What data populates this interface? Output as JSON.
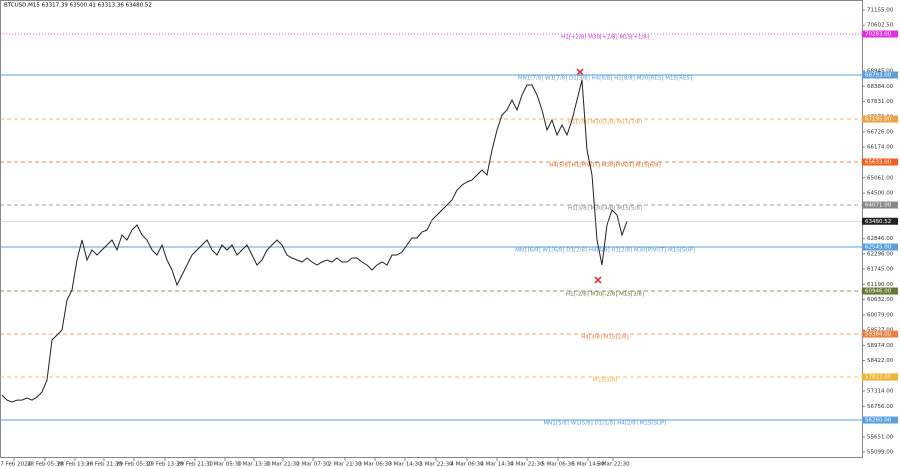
{
  "chart_data": {
    "type": "line",
    "title": "BTCUSD,M15  63317.39 63500.41 63313.36 63480.52",
    "color": "#222222",
    "xlim": [
      -0.4,
      172
    ],
    "ylim": [
      54881,
      71518
    ],
    "values": [
      57168,
      56986,
      56914,
      56986,
      56986,
      57059,
      56986,
      57095,
      57277,
      57713,
      59166,
      59348,
      59529,
      60619,
      60983,
      62072,
      62799,
      62072,
      62436,
      62254,
      62436,
      62617,
      62799,
      62436,
      62981,
      62799,
      63162,
      63344,
      62981,
      62799,
      62436,
      62254,
      62617,
      62072,
      61709,
      61164,
      61528,
      61891,
      62254,
      62436,
      62617,
      62799,
      62436,
      62254,
      62617,
      62436,
      62617,
      62254,
      62436,
      62617,
      62254,
      61891,
      62072,
      62436,
      62617,
      62799,
      62617,
      62254,
      62145,
      62072,
      62000,
      62145,
      62000,
      61891,
      62000,
      62072,
      62000,
      62145,
      62000,
      62000,
      62145,
      62145,
      62000,
      61891,
      61709,
      61891,
      62000,
      61891,
      62254,
      62254,
      62363,
      62617,
      62872,
      62872,
      63090,
      63162,
      63526,
      63707,
      63889,
      64071,
      64252,
      64616,
      64797,
      64906,
      64979,
      65161,
      65342,
      65161,
      66069,
      66795,
      67340,
      67522,
      67885,
      67522,
      68067,
      68430,
      68430,
      68067,
      67522,
      66795,
      67159,
      66614,
      66977,
      66614,
      67159,
      67885,
      68612,
      66069,
      65161,
      62799,
      61891,
      63344,
      63889,
      63707,
      62981,
      63480.52
    ],
    "last_price": {
      "value": 63480.52,
      "label": "63480.52"
    },
    "yticks": [
      {
        "value": 71155,
        "label": "71155.00"
      },
      {
        "value": 70602.5,
        "label": "70602.50"
      },
      {
        "value": 68945,
        "label": "68945.00"
      },
      {
        "value": 68384,
        "label": "68384.00"
      },
      {
        "value": 67831,
        "label": "67831.00"
      },
      {
        "value": 67276,
        "label": "67276.00"
      },
      {
        "value": 66726,
        "label": "66726.00"
      },
      {
        "value": 66174,
        "label": "66174.00"
      },
      {
        "value": 65061,
        "label": "65061.00"
      },
      {
        "value": 64500,
        "label": "64500.00"
      },
      {
        "value": 62846,
        "label": "62846.00"
      },
      {
        "value": 62296,
        "label": "62296.00"
      },
      {
        "value": 61745,
        "label": "61745.00"
      },
      {
        "value": 61190,
        "label": "61190.00"
      },
      {
        "value": 60632,
        "label": "60632.00"
      },
      {
        "value": 60079,
        "label": "60079.00"
      },
      {
        "value": 59527,
        "label": "59527.00"
      },
      {
        "value": 58974,
        "label": "58974.00"
      },
      {
        "value": 58422,
        "label": "58422.00"
      },
      {
        "value": 57866,
        "label": "57866.00"
      },
      {
        "value": 57314,
        "label": "57314.00"
      },
      {
        "value": 56756,
        "label": "56756.00"
      },
      {
        "value": 55651,
        "label": "55651.00"
      },
      {
        "value": 55099,
        "label": "55099.00"
      }
    ],
    "xticks": [
      {
        "value": 2.4,
        "label": "27 Feb 2024"
      },
      {
        "value": 8.6,
        "label": "28 Feb 05:30"
      },
      {
        "value": 14.6,
        "label": "28 Feb 13:30"
      },
      {
        "value": 20.4,
        "label": "28 Feb 21:30"
      },
      {
        "value": 26.4,
        "label": "29 Feb 05:30"
      },
      {
        "value": 32.6,
        "label": "29 Feb 13:30"
      },
      {
        "value": 38.6,
        "label": "29 Feb 21:30"
      },
      {
        "value": 44.6,
        "label": "1 Mar 05:30"
      },
      {
        "value": 50.4,
        "label": "1 Mar 13:30"
      },
      {
        "value": 56.2,
        "label": "1 Mar 21:30"
      },
      {
        "value": 62.2,
        "label": "2 Mar 07:30"
      },
      {
        "value": 68.6,
        "label": "2 Mar 21:30"
      },
      {
        "value": 74.6,
        "label": "3 Mar 06:30"
      },
      {
        "value": 80.6,
        "label": "3 Mar 14:30"
      },
      {
        "value": 86.8,
        "label": "3 Mar 22:30"
      },
      {
        "value": 93,
        "label": "4 Mar 06:30"
      },
      {
        "value": 99,
        "label": "4 Mar 14:30"
      },
      {
        "value": 105,
        "label": "4 Mar 22:30"
      },
      {
        "value": 111.2,
        "label": "5 Mar 06:30"
      },
      {
        "value": 117.2,
        "label": "5 Mar 14:30"
      },
      {
        "value": 122.2,
        "label": "5 Mar 22:30"
      }
    ],
    "levels": [
      {
        "value": 70283,
        "label": "70283.00",
        "text": "H1[+2/8] M30[+2/8] M15[+1/8]",
        "color": "#e030e0",
        "dash": "1,2"
      },
      {
        "value": 68793,
        "label": "68793.00",
        "text": "MN1[7/8] W1[7/8] D1[3/8] H4[8/8] H1[8/8] M30[RES] M15[RES]",
        "color": "#5aa0e0",
        "dash": "none"
      },
      {
        "value": 67195,
        "label": "67195.00",
        "text": "H1[7/8] M30[5/8] M15[7/8]",
        "color": "#f0a040",
        "dash": "4,3"
      },
      {
        "value": 65633,
        "label": "65633.00",
        "text": "H4[5/8] H1[PIVOT] M30[PIVOT] M15[6/8]",
        "color": "#f06020",
        "dash": "4,3"
      },
      {
        "value": 64071,
        "label": "64071.00",
        "text": "H1[3/8] M30[4/8] M15[5/8]",
        "color": "#888888",
        "dash": "4,3"
      },
      {
        "value": 62545,
        "label": "62545.00",
        "text": "MN1[6/8] W1[6/8] D1[2/8] H4[4/8] H1[2/8] M30[PIVOT] M15[SUP]",
        "color": "#5aa0e0",
        "dash": "none"
      },
      {
        "value": 60946,
        "label": "60946.00",
        "text": "H1[-2/8] M30[-2/8] M15[3/8]",
        "color": "#667733",
        "dash": "4,3"
      },
      {
        "value": 59384,
        "label": "59384.00",
        "text": "H4[3/8] M15[2/8]",
        "color": "#f08040",
        "dash": "4,3"
      },
      {
        "value": 57822,
        "label": "57822.00",
        "text": "M15[1/8]",
        "color": "#f0b030",
        "dash": "4,3"
      },
      {
        "value": 56260,
        "label": "56260.00",
        "text": "MN1[5/8] W1[5/8] D1[1/8] H4[2/8] M15[SUP]",
        "color": "#5aa0e0",
        "dash": "none"
      }
    ]
  }
}
